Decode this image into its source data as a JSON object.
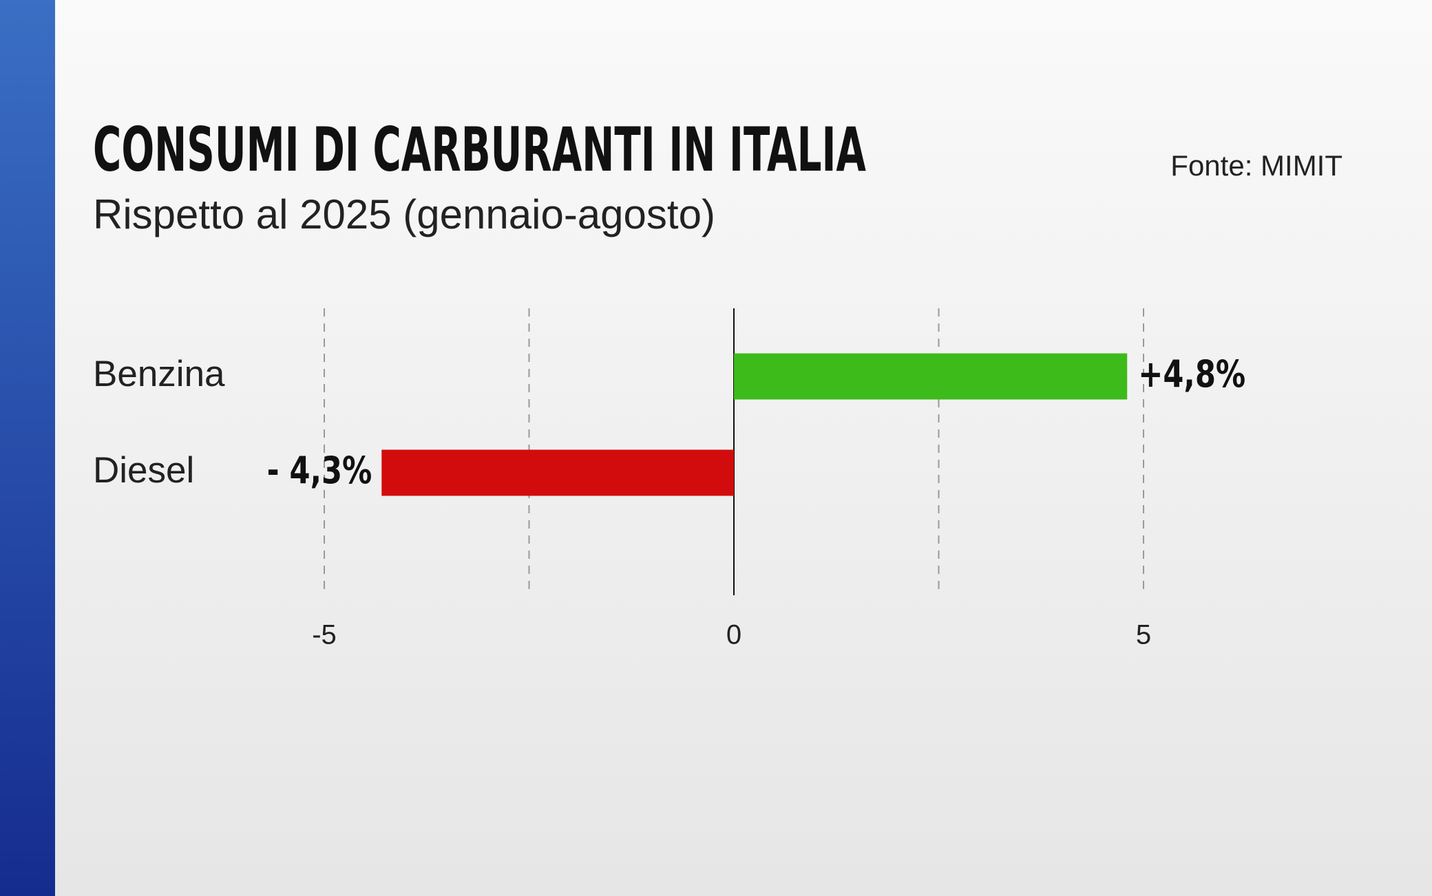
{
  "chart_data": {
    "type": "bar",
    "orientation": "horizontal",
    "title": "CONSUMI DI CARBURANTI IN ITALIA",
    "subtitle": "Rispetto al 2025 (gennaio-agosto)",
    "source": "Fonte: MIMIT",
    "categories": [
      "Benzina",
      "Diesel"
    ],
    "values": [
      4.8,
      -4.3
    ],
    "value_labels": [
      "+4,8%",
      "- 4,3%"
    ],
    "colors": [
      "#3dbb1a",
      "#d20c0c"
    ],
    "xlim": [
      -5,
      5
    ],
    "xticks": [
      -5,
      0,
      5
    ],
    "minor_xticks": [
      -2.5,
      2.5
    ],
    "grid": true
  }
}
